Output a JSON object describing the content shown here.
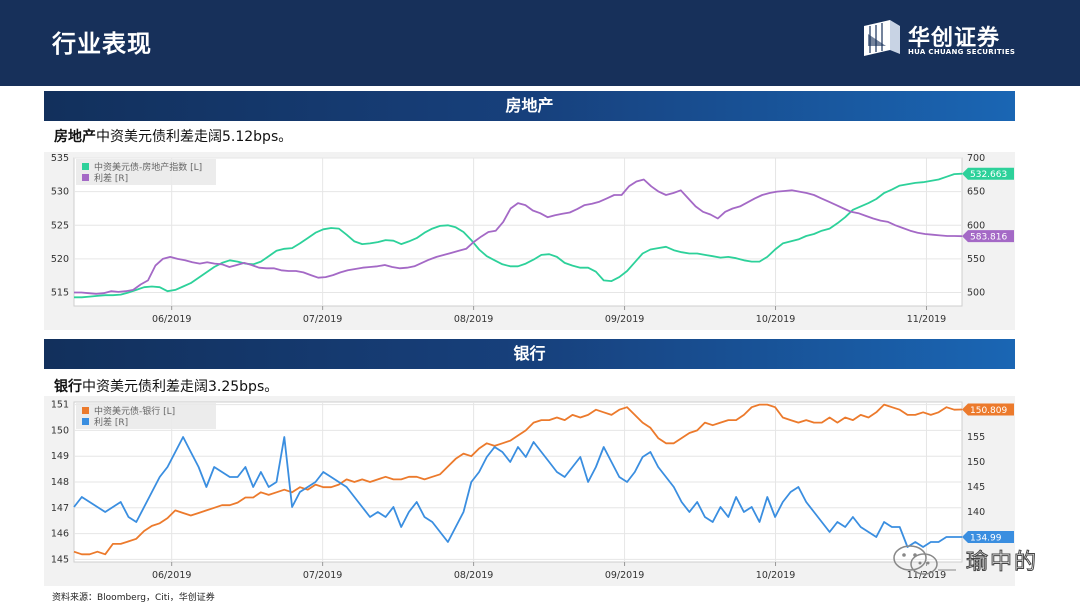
{
  "header": {
    "title": "行业表现"
  },
  "logo": {
    "cn": "华创证券",
    "en": "HUA CHUANG SECURITIES"
  },
  "sections": [
    {
      "bar_title": "房地产",
      "subtitle_bold": "房地产",
      "subtitle_rest": "中资美元债利差走阔5.12bps。"
    },
    {
      "bar_title": "银行",
      "subtitle_bold": "银行",
      "subtitle_rest": "中资美元债利差走阔3.25bps。"
    }
  ],
  "source": "资料来源：Bloomberg，Citi，华创证券",
  "watermark": "瑜中的",
  "chart_data": [
    {
      "type": "line",
      "x_labels": [
        "06/2019",
        "07/2019",
        "08/2019",
        "09/2019",
        "10/2019",
        "11/2019"
      ],
      "ylim_left": [
        513,
        535
      ],
      "ylim_right": [
        480,
        700
      ],
      "yticks_left": [
        515,
        520,
        525,
        530,
        535
      ],
      "yticks_right": [
        500,
        550,
        600,
        650,
        700
      ],
      "grid": true,
      "legend_position": "top-left",
      "series": [
        {
          "name": "中资美元债-房地产指数 [L]",
          "axis": "left",
          "color": "#2dd19a",
          "end_label": "532.663",
          "values": [
            514.3,
            514.3,
            514.4,
            514.5,
            514.6,
            514.6,
            514.7,
            515.0,
            515.4,
            515.8,
            515.9,
            515.8,
            515.2,
            515.4,
            515.9,
            516.4,
            517.2,
            518.0,
            518.8,
            519.4,
            519.8,
            519.6,
            519.3,
            519.2,
            519.6,
            520.4,
            521.2,
            521.5,
            521.6,
            522.3,
            523.1,
            523.9,
            524.4,
            524.6,
            524.5,
            523.6,
            522.6,
            522.2,
            522.3,
            522.5,
            522.8,
            522.7,
            522.2,
            522.6,
            523.1,
            523.9,
            524.5,
            524.9,
            525.0,
            524.7,
            524.0,
            522.8,
            521.4,
            520.4,
            519.8,
            519.2,
            518.9,
            518.9,
            519.3,
            519.9,
            520.6,
            520.7,
            520.3,
            519.4,
            519.0,
            518.7,
            518.7,
            518.1,
            516.8,
            516.7,
            517.3,
            518.2,
            519.5,
            520.8,
            521.4,
            521.6,
            521.8,
            521.3,
            521.0,
            520.8,
            520.8,
            520.6,
            520.4,
            520.2,
            520.3,
            520.1,
            519.8,
            519.6,
            519.6,
            520.3,
            521.4,
            522.3,
            522.6,
            522.9,
            523.4,
            523.7,
            524.2,
            524.5,
            525.3,
            526.2,
            527.3,
            527.8,
            528.3,
            528.9,
            529.8,
            530.3,
            530.9,
            531.1,
            531.3,
            531.4,
            531.6,
            531.8,
            532.2,
            532.6,
            532.66
          ]
        },
        {
          "name": "利差 [R]",
          "axis": "right",
          "color": "#a469c6",
          "end_label": "583.816",
          "values": [
            500,
            500,
            499,
            498,
            499,
            502,
            501,
            502,
            504,
            512,
            518,
            540,
            550,
            553,
            550,
            548,
            545,
            543,
            545,
            543,
            542,
            538,
            541,
            544,
            541,
            537,
            536,
            536,
            533,
            532,
            532,
            530,
            526,
            522,
            523,
            526,
            530,
            533,
            535,
            537,
            538,
            539,
            541,
            538,
            536,
            537,
            539,
            544,
            549,
            553,
            556,
            559,
            562,
            565,
            575,
            583,
            590,
            592,
            605,
            625,
            633,
            630,
            622,
            618,
            612,
            615,
            617,
            619,
            624,
            630,
            632,
            635,
            640,
            645,
            645,
            658,
            665,
            668,
            658,
            650,
            645,
            648,
            652,
            640,
            628,
            620,
            616,
            610,
            620,
            625,
            628,
            634,
            640,
            645,
            648,
            650,
            651,
            652,
            650,
            648,
            645,
            640,
            635,
            630,
            625,
            620,
            618,
            614,
            610,
            607,
            605,
            600,
            596,
            592,
            589,
            587,
            586,
            585,
            584,
            584,
            583.8
          ]
        }
      ]
    },
    {
      "type": "line",
      "x_labels": [
        "06/2019",
        "07/2019",
        "08/2019",
        "09/2019",
        "10/2019",
        "11/2019"
      ],
      "ylim_left": [
        144.9,
        151.1
      ],
      "ylim_right": [
        130,
        162
      ],
      "yticks_left": [
        145,
        146,
        147,
        148,
        149,
        150,
        151
      ],
      "yticks_right": [
        135,
        140,
        145,
        150,
        155,
        160
      ],
      "grid": true,
      "legend_position": "top-left",
      "series": [
        {
          "name": "中资美元债-银行 [L]",
          "axis": "left",
          "color": "#ec7a2c",
          "end_label": "150.809",
          "values": [
            145.3,
            145.2,
            145.2,
            145.3,
            145.2,
            145.6,
            145.6,
            145.7,
            145.8,
            146.1,
            146.3,
            146.4,
            146.6,
            146.9,
            146.8,
            146.7,
            146.8,
            146.9,
            147.0,
            147.1,
            147.1,
            147.2,
            147.4,
            147.4,
            147.6,
            147.5,
            147.6,
            147.7,
            147.6,
            147.8,
            147.7,
            147.9,
            147.8,
            147.8,
            147.9,
            148.1,
            148.0,
            148.1,
            148.0,
            148.1,
            148.2,
            148.1,
            148.1,
            148.2,
            148.2,
            148.1,
            148.2,
            148.3,
            148.6,
            148.9,
            149.1,
            149.0,
            149.3,
            149.5,
            149.4,
            149.5,
            149.6,
            149.8,
            150.0,
            150.3,
            150.4,
            150.4,
            150.5,
            150.4,
            150.6,
            150.5,
            150.6,
            150.8,
            150.7,
            150.6,
            150.8,
            150.9,
            150.6,
            150.3,
            150.1,
            149.7,
            149.5,
            149.5,
            149.7,
            149.9,
            150.0,
            150.3,
            150.2,
            150.3,
            150.4,
            150.4,
            150.6,
            150.9,
            151.0,
            151.0,
            150.9,
            150.5,
            150.4,
            150.3,
            150.4,
            150.3,
            150.3,
            150.5,
            150.3,
            150.5,
            150.4,
            150.6,
            150.5,
            150.7,
            151.0,
            150.9,
            150.8,
            150.6,
            150.6,
            150.7,
            150.6,
            150.7,
            150.9,
            150.8,
            150.81
          ]
        },
        {
          "name": "利差 [R]",
          "axis": "right",
          "color": "#3a8ee0",
          "end_label": "134.99",
          "values": [
            141,
            143,
            142,
            141,
            140,
            141,
            142,
            139,
            138,
            141,
            144,
            147,
            149,
            152,
            155,
            152,
            149,
            145,
            149,
            148,
            147,
            147,
            149,
            145,
            148,
            145,
            146,
            155,
            141,
            144,
            145,
            146,
            148,
            147,
            146,
            145,
            143,
            141,
            139,
            140,
            139,
            141,
            137,
            140,
            142,
            139,
            138,
            136,
            134,
            137,
            140,
            146,
            148,
            151,
            153,
            152,
            150,
            153,
            151,
            154,
            152,
            150,
            148,
            147,
            149,
            151,
            146,
            149,
            153,
            150,
            147,
            146,
            148,
            151,
            152,
            149,
            147,
            145,
            142,
            140,
            142,
            139,
            138,
            141,
            139,
            143,
            140,
            141,
            138,
            143,
            139,
            142,
            144,
            145,
            142,
            140,
            138,
            136,
            138,
            137,
            139,
            137,
            136,
            135,
            138,
            137,
            137,
            133,
            134,
            133,
            134,
            134,
            135,
            135,
            134.99
          ]
        }
      ]
    }
  ]
}
